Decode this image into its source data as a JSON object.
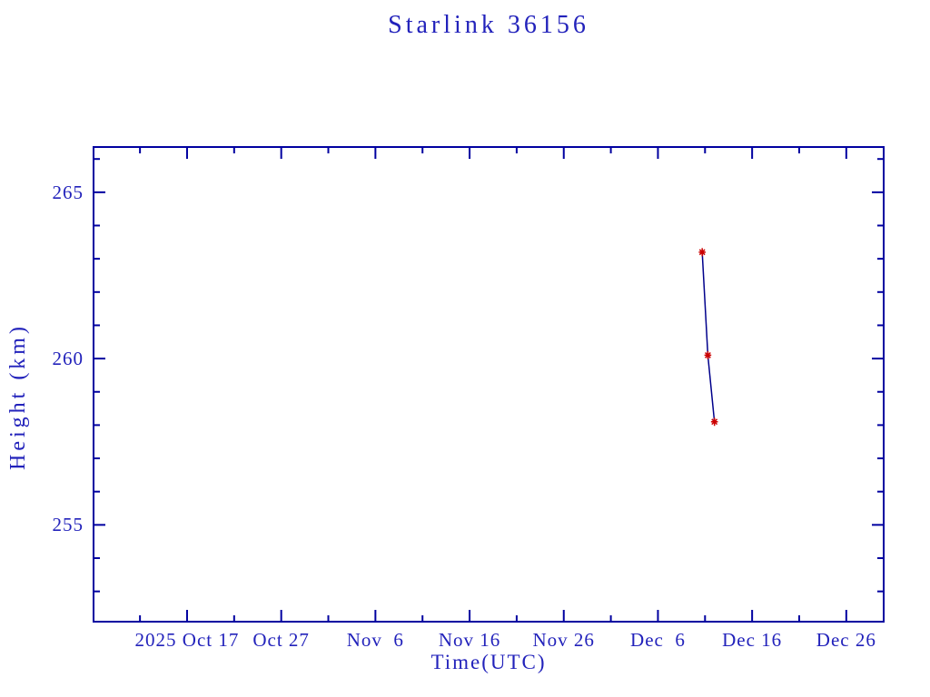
{
  "title": "Starlink 36156",
  "chart_data": {
    "type": "line",
    "title": "Starlink 36156",
    "xlabel": "Time(UTC)",
    "ylabel": "Height (km)",
    "x_unit": "days since 2025 Oct 17",
    "xlim": [
      -9.93,
      73.97
    ],
    "ylim": [
      252.09,
      266.36
    ],
    "grid": false,
    "legend": "none",
    "x_ticks_major": [
      {
        "t": 0,
        "label": "2025 Oct 17"
      },
      {
        "t": 10,
        "label": "Oct 27"
      },
      {
        "t": 20,
        "label": "Nov  6"
      },
      {
        "t": 30,
        "label": "Nov 16"
      },
      {
        "t": 40,
        "label": "Nov 26"
      },
      {
        "t": 50,
        "label": "Dec  6"
      },
      {
        "t": 60,
        "label": "Dec 16"
      },
      {
        "t": 70,
        "label": "Dec 26"
      }
    ],
    "x_ticks_minor": [
      -5,
      5,
      15,
      25,
      35,
      45,
      55,
      65
    ],
    "y_ticks_major": [
      {
        "v": 265,
        "label": "265"
      },
      {
        "v": 260,
        "label": "260"
      },
      {
        "v": 255,
        "label": "255"
      }
    ],
    "y_ticks_minor": [
      253,
      254,
      256,
      257,
      258,
      259,
      261,
      262,
      263,
      264,
      266
    ],
    "series": [
      {
        "name": "height",
        "marker": "red-asterisk",
        "points": [
          {
            "date": "2025 Dec 10.7",
            "t": 54.7,
            "height": 263.2
          },
          {
            "date": "2025 Dec 11.3",
            "t": 55.3,
            "height": 260.1
          },
          {
            "date": "2025 Dec 12.0",
            "t": 56.0,
            "height": 258.1
          }
        ]
      }
    ],
    "colors": {
      "background": "#ffffff",
      "axis": "#0000a0",
      "text": "#2222bb",
      "line": "#00008b",
      "marker": "#cc0000"
    }
  }
}
